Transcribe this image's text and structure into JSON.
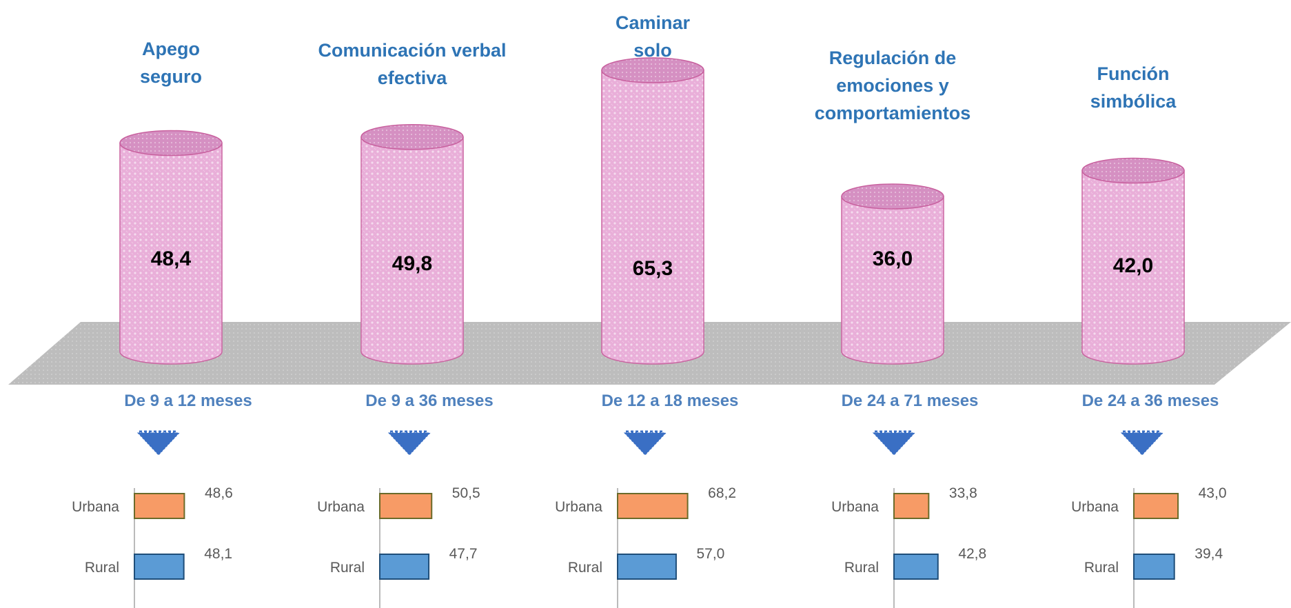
{
  "chart_data": [
    {
      "type": "bar",
      "style": "3d-cylinder",
      "categories": [
        "Apego seguro",
        "Comunicación verbal efectiva",
        "Caminar solo",
        "Regulación de emociones y comportamientos",
        "Función simbólica"
      ],
      "category_lines": [
        [
          "Apego",
          "seguro"
        ],
        [
          "Comunicación  verbal",
          "efectiva"
        ],
        [
          "Caminar",
          "solo"
        ],
        [
          "Regulación de",
          "emociones y",
          "comportamientos"
        ],
        [
          "Función",
          "simbólica"
        ]
      ],
      "age_ranges": [
        "De 9 a 12 meses",
        "De 9 a 36 meses",
        "De 12 a 18 meses",
        "De 24 a 71 meses",
        "De 24 a 36 meses"
      ],
      "values": [
        48.4,
        49.8,
        65.3,
        36.0,
        42.0
      ],
      "value_labels": [
        "48,4",
        "49,8",
        "65,3",
        "36,0",
        "42,0"
      ]
    },
    {
      "type": "bar",
      "orientation": "horizontal",
      "categories": [
        "Urbana",
        "Rural"
      ],
      "series": [
        {
          "values": [
            48.6,
            48.1
          ],
          "labels": [
            "48,6",
            "48,1"
          ]
        },
        {
          "values": [
            50.5,
            47.7
          ],
          "labels": [
            "50,5",
            "47,7"
          ]
        },
        {
          "values": [
            68.2,
            57.0
          ],
          "labels": [
            "68,2",
            "57,0"
          ]
        },
        {
          "values": [
            33.8,
            42.8
          ],
          "labels": [
            "33,8",
            "42,8"
          ]
        },
        {
          "values": [
            43.0,
            39.4
          ],
          "labels": [
            "43,0",
            "39,4"
          ]
        }
      ]
    }
  ],
  "colors": {
    "title": "#2e74b5",
    "age_range": "#4f81bd",
    "arrow": "#3a6fc4",
    "cylinder_body": "#e8a9d6",
    "cylinder_top": "#d590c2",
    "cylinder_stroke": "#c8609e",
    "floor": "#bdbdbd",
    "urbana": "#f79b66",
    "rural": "#5b9bd5",
    "urbana_stroke": "#6b6b2a",
    "rural_stroke": "#1f4e79",
    "value_text": "#000000",
    "mini_text": "#595959"
  }
}
